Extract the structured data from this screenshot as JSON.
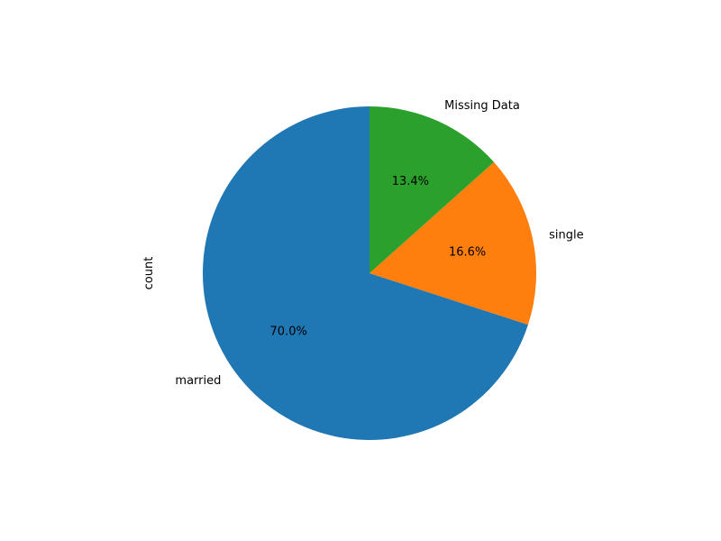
{
  "chart_data": {
    "type": "pie",
    "title": "",
    "ylabel": "count",
    "start_angle_deg": 90,
    "direction": "counterclockwise",
    "slices": [
      {
        "label": "married",
        "percent": 70.0,
        "percent_label": "70.0%",
        "color": "#1f77b4"
      },
      {
        "label": "single",
        "percent": 16.6,
        "percent_label": "16.6%",
        "color": "#ff7f0e"
      },
      {
        "label": "Missing Data",
        "percent": 13.4,
        "percent_label": "13.4%",
        "color": "#2ca02c"
      }
    ]
  }
}
